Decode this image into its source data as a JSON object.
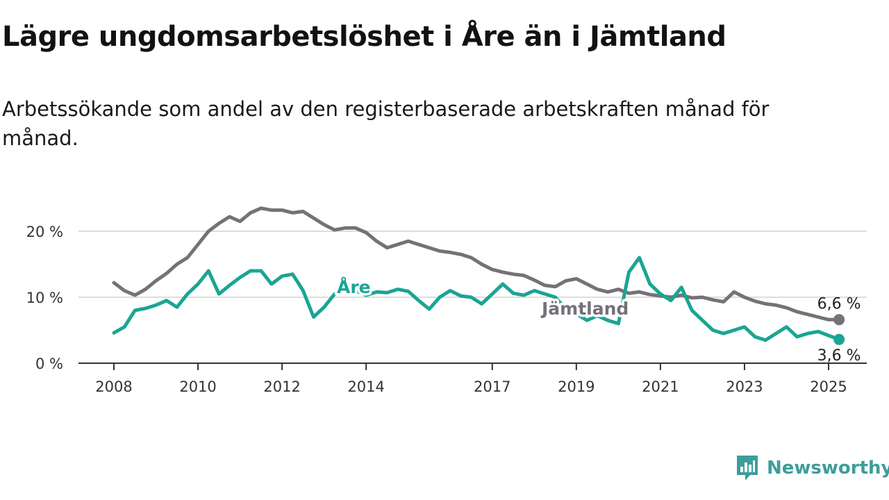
{
  "title": "Lägre ungdomsarbetslöshet i Åre än i Jämtland",
  "subtitle": "Arbetssökande som andel av den registerbaserade arbetskraften månad för månad.",
  "brand": {
    "name": "Newsworthy",
    "icon": "newsworthy-logo-icon",
    "color": "#3d9d9b"
  },
  "colors": {
    "jamtland": "#747178",
    "are": "#1aa594",
    "grid": "#dddddd",
    "axis": "#333333"
  },
  "chart_data": {
    "type": "line",
    "title": "Lägre ungdomsarbetslöshet i Åre än i Jämtland",
    "subtitle": "Arbetssökande som andel av den registerbaserade arbetskraften månad för månad.",
    "xlim": [
      2008,
      2025.4
    ],
    "ylim": [
      0,
      24
    ],
    "x_ticks": [
      2008,
      2010,
      2012,
      2014,
      2017,
      2019,
      2021,
      2023,
      2025
    ],
    "y_ticks": [
      {
        "value": 0,
        "label": "0 %"
      },
      {
        "value": 10,
        "label": "10 %"
      },
      {
        "value": 20,
        "label": "20 %"
      }
    ],
    "grid": true,
    "series": [
      {
        "name": "Jämtland",
        "color": "#747178",
        "end_label": "6,6 %",
        "points": [
          [
            2008.0,
            12.2
          ],
          [
            2008.25,
            11.0
          ],
          [
            2008.5,
            10.3
          ],
          [
            2008.75,
            11.2
          ],
          [
            2009.0,
            12.5
          ],
          [
            2009.25,
            13.6
          ],
          [
            2009.5,
            15.0
          ],
          [
            2009.75,
            16.0
          ],
          [
            2010.0,
            18.0
          ],
          [
            2010.25,
            20.0
          ],
          [
            2010.5,
            21.2
          ],
          [
            2010.75,
            22.2
          ],
          [
            2011.0,
            21.5
          ],
          [
            2011.25,
            22.8
          ],
          [
            2011.5,
            23.5
          ],
          [
            2011.75,
            23.2
          ],
          [
            2012.0,
            23.2
          ],
          [
            2012.25,
            22.8
          ],
          [
            2012.5,
            23.0
          ],
          [
            2012.75,
            22.0
          ],
          [
            2013.0,
            21.0
          ],
          [
            2013.25,
            20.2
          ],
          [
            2013.5,
            20.5
          ],
          [
            2013.75,
            20.5
          ],
          [
            2014.0,
            19.8
          ],
          [
            2014.25,
            18.5
          ],
          [
            2014.5,
            17.5
          ],
          [
            2014.75,
            18.0
          ],
          [
            2015.0,
            18.5
          ],
          [
            2015.25,
            18.0
          ],
          [
            2015.5,
            17.5
          ],
          [
            2015.75,
            17.0
          ],
          [
            2016.0,
            16.8
          ],
          [
            2016.25,
            16.5
          ],
          [
            2016.5,
            16.0
          ],
          [
            2016.75,
            15.0
          ],
          [
            2017.0,
            14.2
          ],
          [
            2017.25,
            13.8
          ],
          [
            2017.5,
            13.5
          ],
          [
            2017.75,
            13.3
          ],
          [
            2018.0,
            12.6
          ],
          [
            2018.25,
            11.8
          ],
          [
            2018.5,
            11.6
          ],
          [
            2018.75,
            12.5
          ],
          [
            2019.0,
            12.8
          ],
          [
            2019.25,
            12.0
          ],
          [
            2019.5,
            11.2
          ],
          [
            2019.75,
            10.8
          ],
          [
            2020.0,
            11.2
          ],
          [
            2020.25,
            10.6
          ],
          [
            2020.5,
            10.8
          ],
          [
            2020.75,
            10.4
          ],
          [
            2021.0,
            10.2
          ],
          [
            2021.25,
            10.0
          ],
          [
            2021.5,
            10.3
          ],
          [
            2021.75,
            9.9
          ],
          [
            2022.0,
            10.0
          ],
          [
            2022.25,
            9.6
          ],
          [
            2022.5,
            9.3
          ],
          [
            2022.75,
            10.8
          ],
          [
            2023.0,
            10.0
          ],
          [
            2023.25,
            9.4
          ],
          [
            2023.5,
            9.0
          ],
          [
            2023.75,
            8.8
          ],
          [
            2024.0,
            8.4
          ],
          [
            2024.25,
            7.8
          ],
          [
            2024.5,
            7.4
          ],
          [
            2024.75,
            7.0
          ],
          [
            2025.0,
            6.6
          ],
          [
            2025.25,
            6.6
          ]
        ]
      },
      {
        "name": "Åre",
        "color": "#1aa594",
        "end_label": "3,6 %",
        "points": [
          [
            2008.0,
            4.6
          ],
          [
            2008.25,
            5.5
          ],
          [
            2008.5,
            8.0
          ],
          [
            2008.75,
            8.3
          ],
          [
            2009.0,
            8.8
          ],
          [
            2009.25,
            9.5
          ],
          [
            2009.5,
            8.5
          ],
          [
            2009.75,
            10.5
          ],
          [
            2010.0,
            12.0
          ],
          [
            2010.25,
            14.0
          ],
          [
            2010.5,
            10.5
          ],
          [
            2010.75,
            11.8
          ],
          [
            2011.0,
            13.0
          ],
          [
            2011.25,
            14.0
          ],
          [
            2011.5,
            14.0
          ],
          [
            2011.75,
            12.0
          ],
          [
            2012.0,
            13.2
          ],
          [
            2012.25,
            13.5
          ],
          [
            2012.5,
            11.0
          ],
          [
            2012.75,
            7.0
          ],
          [
            2013.0,
            8.5
          ],
          [
            2013.25,
            10.5
          ],
          [
            2013.5,
            11.5
          ],
          [
            2013.75,
            11.0
          ],
          [
            2014.0,
            10.3
          ],
          [
            2014.25,
            10.8
          ],
          [
            2014.5,
            10.7
          ],
          [
            2014.75,
            11.2
          ],
          [
            2015.0,
            10.9
          ],
          [
            2015.25,
            9.5
          ],
          [
            2015.5,
            8.2
          ],
          [
            2015.75,
            10.0
          ],
          [
            2016.0,
            11.0
          ],
          [
            2016.25,
            10.2
          ],
          [
            2016.5,
            10.0
          ],
          [
            2016.75,
            9.0
          ],
          [
            2017.0,
            10.5
          ],
          [
            2017.25,
            12.0
          ],
          [
            2017.5,
            10.6
          ],
          [
            2017.75,
            10.3
          ],
          [
            2018.0,
            11.0
          ],
          [
            2018.25,
            10.5
          ],
          [
            2018.5,
            10.0
          ],
          [
            2018.75,
            8.2
          ],
          [
            2019.0,
            7.5
          ],
          [
            2019.25,
            6.5
          ],
          [
            2019.5,
            7.2
          ],
          [
            2019.75,
            6.5
          ],
          [
            2020.0,
            6.0
          ],
          [
            2020.25,
            13.8
          ],
          [
            2020.5,
            16.0
          ],
          [
            2020.75,
            12.0
          ],
          [
            2021.0,
            10.5
          ],
          [
            2021.25,
            9.5
          ],
          [
            2021.5,
            11.5
          ],
          [
            2021.75,
            8.0
          ],
          [
            2022.0,
            6.5
          ],
          [
            2022.25,
            5.0
          ],
          [
            2022.5,
            4.5
          ],
          [
            2022.75,
            5.0
          ],
          [
            2023.0,
            5.5
          ],
          [
            2023.25,
            4.0
          ],
          [
            2023.5,
            3.5
          ],
          [
            2023.75,
            4.5
          ],
          [
            2024.0,
            5.5
          ],
          [
            2024.25,
            4.0
          ],
          [
            2024.5,
            4.5
          ],
          [
            2024.75,
            4.8
          ],
          [
            2025.0,
            4.2
          ],
          [
            2025.25,
            3.6
          ]
        ]
      }
    ]
  }
}
